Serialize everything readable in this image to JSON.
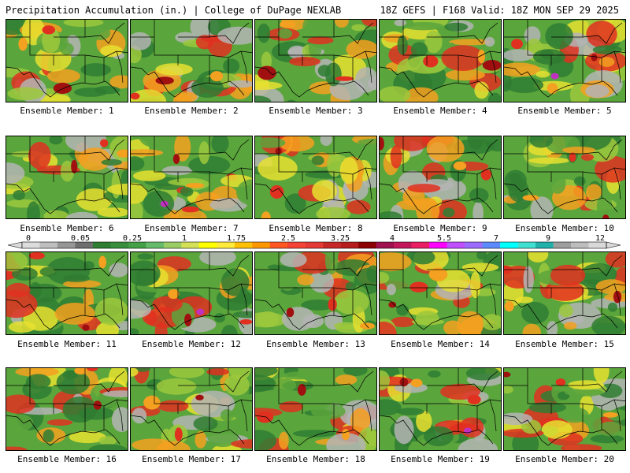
{
  "header": {
    "left_title": "Precipitation Accumulation (in.) | College of DuPage NEXLAB",
    "right_title": "18Z GEFS | F168 Valid: 18Z MON SEP 29 2025"
  },
  "caption_prefix": "Ensemble Member:",
  "members": [
    {
      "label": "Ensemble Member: 1",
      "icon": "precip-map-member-1"
    },
    {
      "label": "Ensemble Member: 2",
      "icon": "precip-map-member-2"
    },
    {
      "label": "Ensemble Member: 3",
      "icon": "precip-map-member-3"
    },
    {
      "label": "Ensemble Member: 4",
      "icon": "precip-map-member-4"
    },
    {
      "label": "Ensemble Member: 5",
      "icon": "precip-map-member-5"
    },
    {
      "label": "Ensemble Member: 6",
      "icon": "precip-map-member-6"
    },
    {
      "label": "Ensemble Member: 7",
      "icon": "precip-map-member-7"
    },
    {
      "label": "Ensemble Member: 8",
      "icon": "precip-map-member-8"
    },
    {
      "label": "Ensemble Member: 9",
      "icon": "precip-map-member-9"
    },
    {
      "label": "Ensemble Member: 10",
      "icon": "precip-map-member-10"
    },
    {
      "label": "Ensemble Member: 11",
      "icon": "precip-map-member-11"
    },
    {
      "label": "Ensemble Member: 12",
      "icon": "precip-map-member-12"
    },
    {
      "label": "Ensemble Member: 13",
      "icon": "precip-map-member-13"
    },
    {
      "label": "Ensemble Member: 14",
      "icon": "precip-map-member-14"
    },
    {
      "label": "Ensemble Member: 15",
      "icon": "precip-map-member-15"
    },
    {
      "label": "Ensemble Member: 16",
      "icon": "precip-map-member-16"
    },
    {
      "label": "Ensemble Member: 17",
      "icon": "precip-map-member-17"
    },
    {
      "label": "Ensemble Member: 18",
      "icon": "precip-map-member-18"
    },
    {
      "label": "Ensemble Member: 19",
      "icon": "precip-map-member-19"
    },
    {
      "label": "Ensemble Member: 20",
      "icon": "precip-map-member-20"
    }
  ],
  "colorbar": {
    "tick_labels": [
      "0",
      "0.05",
      "0.25",
      "1",
      "1.75",
      "2.5",
      "3.25",
      "4",
      "5.5",
      "7",
      "9",
      "12"
    ],
    "colors": [
      "#dcdcdc",
      "#bebebe",
      "#969696",
      "#6e6e6e",
      "#2e7d32",
      "#388e3c",
      "#43a047",
      "#66bb6a",
      "#9ccc65",
      "#d4e157",
      "#ffff00",
      "#ffeb3b",
      "#ffc107",
      "#ff9800",
      "#ff5722",
      "#f44336",
      "#e53935",
      "#c62828",
      "#b71c1c",
      "#8b0000",
      "#a0124f",
      "#c2185b",
      "#e91e63",
      "#ff00ff",
      "#c050ff",
      "#9c6bff",
      "#5d8bff",
      "#00ffff",
      "#40e0d0",
      "#20b2aa",
      "#9e9e9e",
      "#bdbdbd",
      "#d9d9d9"
    ]
  },
  "map_colors": {
    "dry_gray": "#b4b4b4",
    "dark_green": "#2f7d32",
    "green": "#5aa53c",
    "light_green": "#9cc83c",
    "yellow": "#e8e030",
    "orange": "#f4a020",
    "red": "#e03020",
    "dark_red": "#a01010",
    "magenta": "#c030c0",
    "border": "#000000"
  }
}
